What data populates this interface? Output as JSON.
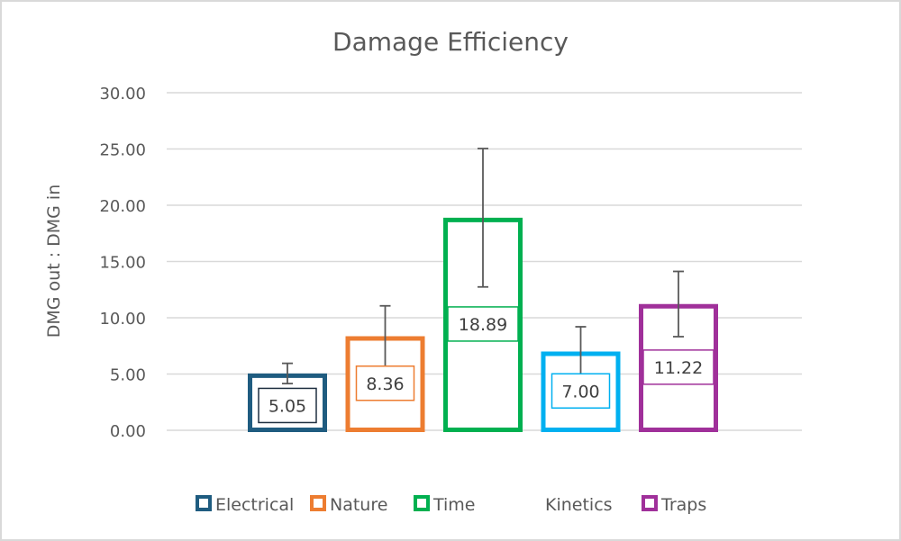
{
  "chart_data": {
    "type": "bar",
    "title": "Damage Efficiency",
    "xlabel": "",
    "ylabel": "DMG out : DMG in",
    "ylim": [
      0,
      30
    ],
    "yticks": [
      "0.00",
      "5.00",
      "10.00",
      "15.00",
      "20.00",
      "25.00",
      "30.00"
    ],
    "ytick_values": [
      0,
      5,
      10,
      15,
      20,
      25,
      30
    ],
    "grid": true,
    "legend_position": "bottom",
    "categories": [
      "Electrical",
      "Nature",
      "Time",
      "Kinetics",
      "Traps"
    ],
    "values": [
      5.05,
      8.36,
      18.89,
      7.0,
      11.22
    ],
    "data_labels": [
      "5.05",
      "8.36",
      "18.89",
      "7.00",
      "11.22"
    ],
    "error": [
      0.9,
      2.7,
      6.15,
      2.2,
      2.9
    ],
    "colors": [
      "#1f5c80",
      "#ed7d31",
      "#00b050",
      "#00b0f0",
      "#a0309a"
    ],
    "legend_show_marker": [
      true,
      true,
      true,
      false,
      true
    ]
  }
}
